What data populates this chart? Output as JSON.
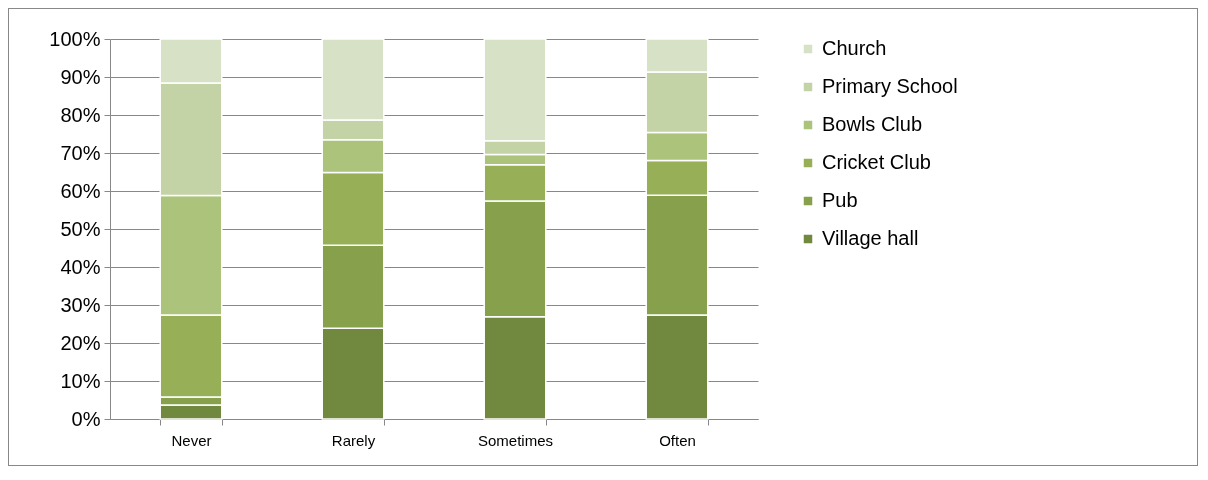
{
  "chart_data": {
    "type": "bar",
    "stacked": true,
    "categories": [
      "Never",
      "Rarely",
      "Sometimes",
      "Often"
    ],
    "series": [
      {
        "name": "Village hall",
        "color": "#71893f",
        "values": [
          3.7,
          23.9,
          26.9,
          27.4
        ]
      },
      {
        "name": "Pub",
        "color": "#86a04b",
        "values": [
          2.1,
          21.8,
          30.5,
          31.5
        ]
      },
      {
        "name": "Cricket Club",
        "color": "#97b057",
        "values": [
          21.6,
          19.2,
          9.5,
          9.1
        ]
      },
      {
        "name": "Bowls Club",
        "color": "#abc37a",
        "values": [
          31.4,
          8.6,
          2.7,
          7.4
        ]
      },
      {
        "name": "Primary School",
        "color": "#c3d3a5",
        "values": [
          29.6,
          5.2,
          3.6,
          15.9
        ]
      },
      {
        "name": "Church",
        "color": "#d7e1c5",
        "values": [
          11.6,
          21.3,
          26.8,
          8.7
        ]
      }
    ],
    "ylim": [
      0,
      100
    ],
    "yticks": [
      {
        "value": 0,
        "label": "0%"
      },
      {
        "value": 10,
        "label": "10%"
      },
      {
        "value": 20,
        "label": "20%"
      },
      {
        "value": 30,
        "label": "30%"
      },
      {
        "value": 40,
        "label": "40%"
      },
      {
        "value": 50,
        "label": "50%"
      },
      {
        "value": 60,
        "label": "60%"
      },
      {
        "value": 70,
        "label": "70%"
      },
      {
        "value": 80,
        "label": "80%"
      },
      {
        "value": 90,
        "label": "90%"
      },
      {
        "value": 100,
        "label": "100%"
      }
    ],
    "grid": "y",
    "legend": "right"
  }
}
